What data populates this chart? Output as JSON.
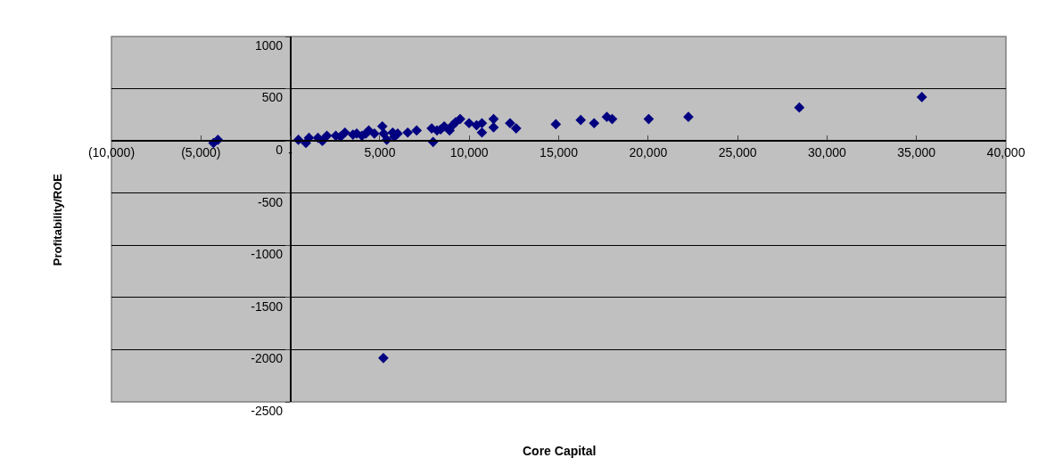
{
  "chart_data": {
    "type": "scatter",
    "xlabel": "Core Capital",
    "ylabel": "Profitability/ROE",
    "xlim": [
      -10000,
      40000
    ],
    "xticks": [
      {
        "value": -10000,
        "label": "(10,000)"
      },
      {
        "value": -5000,
        "label": "(5,000)"
      },
      {
        "value": 0,
        "label": "-"
      },
      {
        "value": 5000,
        "label": "5,000"
      },
      {
        "value": 10000,
        "label": "10,000"
      },
      {
        "value": 15000,
        "label": "15,000"
      },
      {
        "value": 20000,
        "label": "20,000"
      },
      {
        "value": 25000,
        "label": "25,000"
      },
      {
        "value": 30000,
        "label": "30,000"
      },
      {
        "value": 35000,
        "label": "35,000"
      },
      {
        "value": 40000,
        "label": "40,000"
      }
    ],
    "ylim": [
      -2500,
      1000
    ],
    "yticks": [
      -2500,
      -2000,
      -1500,
      -1000,
      -500,
      0,
      500,
      1000
    ],
    "grid": "y",
    "marker": "diamond",
    "series": [
      {
        "color": "#000080",
        "x": [
          -4300,
          -4050,
          450,
          870,
          1040,
          1540,
          1790,
          2040,
          2540,
          2800,
          3050,
          3500,
          3710,
          4000,
          4220,
          4380,
          4700,
          5140,
          5220,
          5390,
          5200,
          5720,
          5810,
          6000,
          6560,
          7060,
          7900,
          7980,
          8200,
          8400,
          8600,
          8900,
          9070,
          9240,
          9490,
          9990,
          10410,
          10710,
          10710,
          11360,
          11360,
          12280,
          12620,
          14840,
          16230,
          16980,
          17690,
          17990,
          20030,
          22250,
          28450,
          35300
        ],
        "values": [
          -20,
          10,
          10,
          -20,
          30,
          30,
          0,
          50,
          50,
          40,
          80,
          60,
          70,
          50,
          70,
          100,
          70,
          140,
          70,
          10,
          -2080,
          80,
          40,
          70,
          80,
          100,
          120,
          -10,
          100,
          110,
          140,
          100,
          150,
          180,
          210,
          170,
          150,
          170,
          80,
          210,
          130,
          170,
          120,
          160,
          200,
          170,
          230,
          210,
          210,
          230,
          320,
          420
        ]
      }
    ]
  }
}
